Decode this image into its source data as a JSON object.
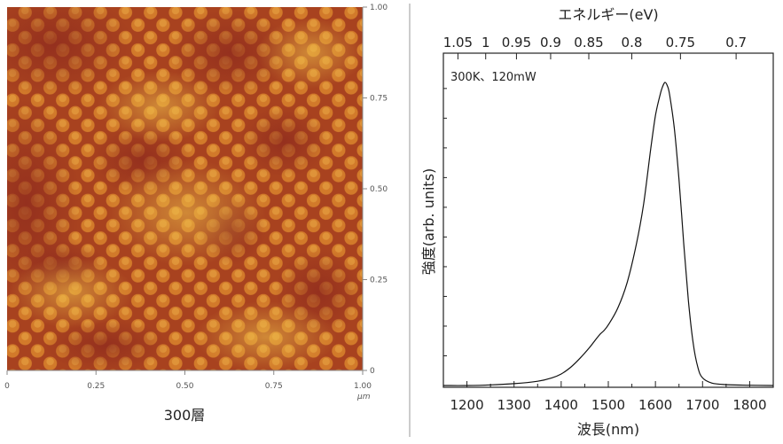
{
  "colors": {
    "afm_base": "#c9661f",
    "afm_dark": "#9e2f22",
    "afm_bright": "#e1a43c",
    "divider": "#999999",
    "axis": "#222222",
    "curve": "#111111"
  },
  "chart_data": [
    {
      "type": "heatmap",
      "title": "",
      "caption": "300層",
      "x_ticks": [
        "0",
        "0.25",
        "0.50",
        "0.75",
        "1.00"
      ],
      "x_unit": "μm",
      "y_ticks": [
        "0",
        "0.25",
        "0.50",
        "0.75",
        "1.00"
      ],
      "xlim": [
        0,
        1.0
      ],
      "ylim": [
        0,
        1.0
      ],
      "grid": false,
      "colormap": "orange-brown (dark red to yellow)"
    },
    {
      "type": "line",
      "title": "",
      "annotation": "300K、120mW",
      "xlabel": "波長(nm)",
      "ylabel": "強度(arb. units)",
      "top_xlabel": "エネルギー(eV)",
      "xlim": [
        1150,
        1850
      ],
      "ylim": [
        0,
        1.0
      ],
      "x_ticks": [
        1200,
        1300,
        1400,
        1500,
        1600,
        1700,
        1800
      ],
      "top_x_ticks": [
        {
          "label": "1.05",
          "nm": 1180.9
        },
        {
          "label": "1",
          "nm": 1239.8
        },
        {
          "label": "0.95",
          "nm": 1305.1
        },
        {
          "label": "0.9",
          "nm": 1377.6
        },
        {
          "label": "0.85",
          "nm": 1458.6
        },
        {
          "label": "0.8",
          "nm": 1549.8
        },
        {
          "label": "0.75",
          "nm": 1653.1
        },
        {
          "label": "0.7",
          "nm": 1771.2
        }
      ],
      "y_tick_count": 10,
      "grid": false,
      "legend": "none",
      "series": [
        {
          "x": [
            1150,
            1200,
            1250,
            1300,
            1350,
            1380,
            1400,
            1420,
            1440,
            1460,
            1480,
            1490,
            1500,
            1520,
            1540,
            1560,
            1575,
            1590,
            1600,
            1610,
            1615,
            1620,
            1625,
            1630,
            1640,
            1650,
            1660,
            1670,
            1680,
            1690,
            1700,
            1720,
            1750,
            1800,
            1850
          ],
          "y": [
            0.0,
            0.0,
            0.002,
            0.006,
            0.014,
            0.025,
            0.038,
            0.06,
            0.09,
            0.125,
            0.165,
            0.18,
            0.2,
            0.255,
            0.34,
            0.47,
            0.6,
            0.78,
            0.89,
            0.96,
            0.985,
            1.0,
            0.99,
            0.96,
            0.85,
            0.68,
            0.47,
            0.28,
            0.14,
            0.06,
            0.025,
            0.008,
            0.003,
            0.001,
            0.0
          ]
        }
      ]
    }
  ]
}
